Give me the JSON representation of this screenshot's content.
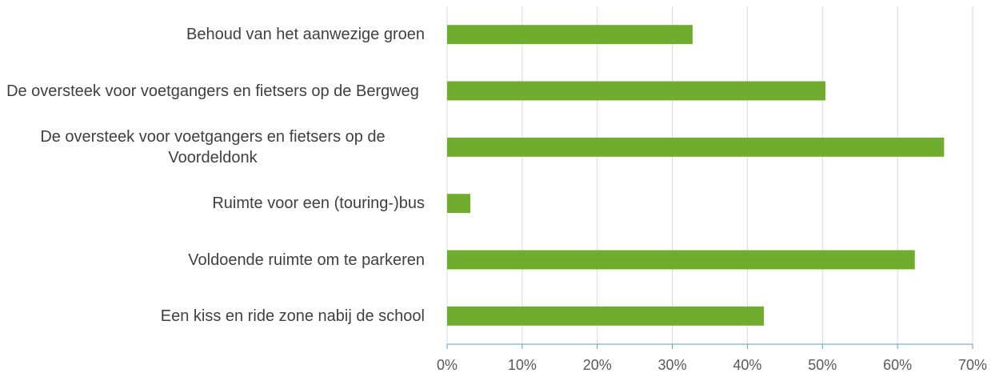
{
  "chart_data": {
    "type": "bar",
    "orientation": "horizontal",
    "categories": [
      "Behoud van het aanwezige groen",
      "De oversteek voor voetgangers en fietsers op de Bergweg",
      "De oversteek voor voetgangers en fietsers op de Voordeldonk",
      "Ruimte voor een (touring-)bus",
      "Voldoende ruimte om te parkeren",
      "Een kiss en ride zone nabij de school"
    ],
    "values": [
      32.7,
      50.4,
      66.2,
      3.1,
      62.3,
      42.2
    ],
    "color": "#70ad2f",
    "xlim": [
      0,
      70
    ],
    "xticks": [
      {
        "value": 0,
        "label": "0%"
      },
      {
        "value": 10,
        "label": "10%"
      },
      {
        "value": 20,
        "label": "20%"
      },
      {
        "value": 30,
        "label": "30%"
      },
      {
        "value": 40,
        "label": "40%"
      },
      {
        "value": 50,
        "label": "50%"
      },
      {
        "value": 60,
        "label": "60%"
      },
      {
        "value": 70,
        "label": "70%"
      }
    ],
    "grid": true
  }
}
